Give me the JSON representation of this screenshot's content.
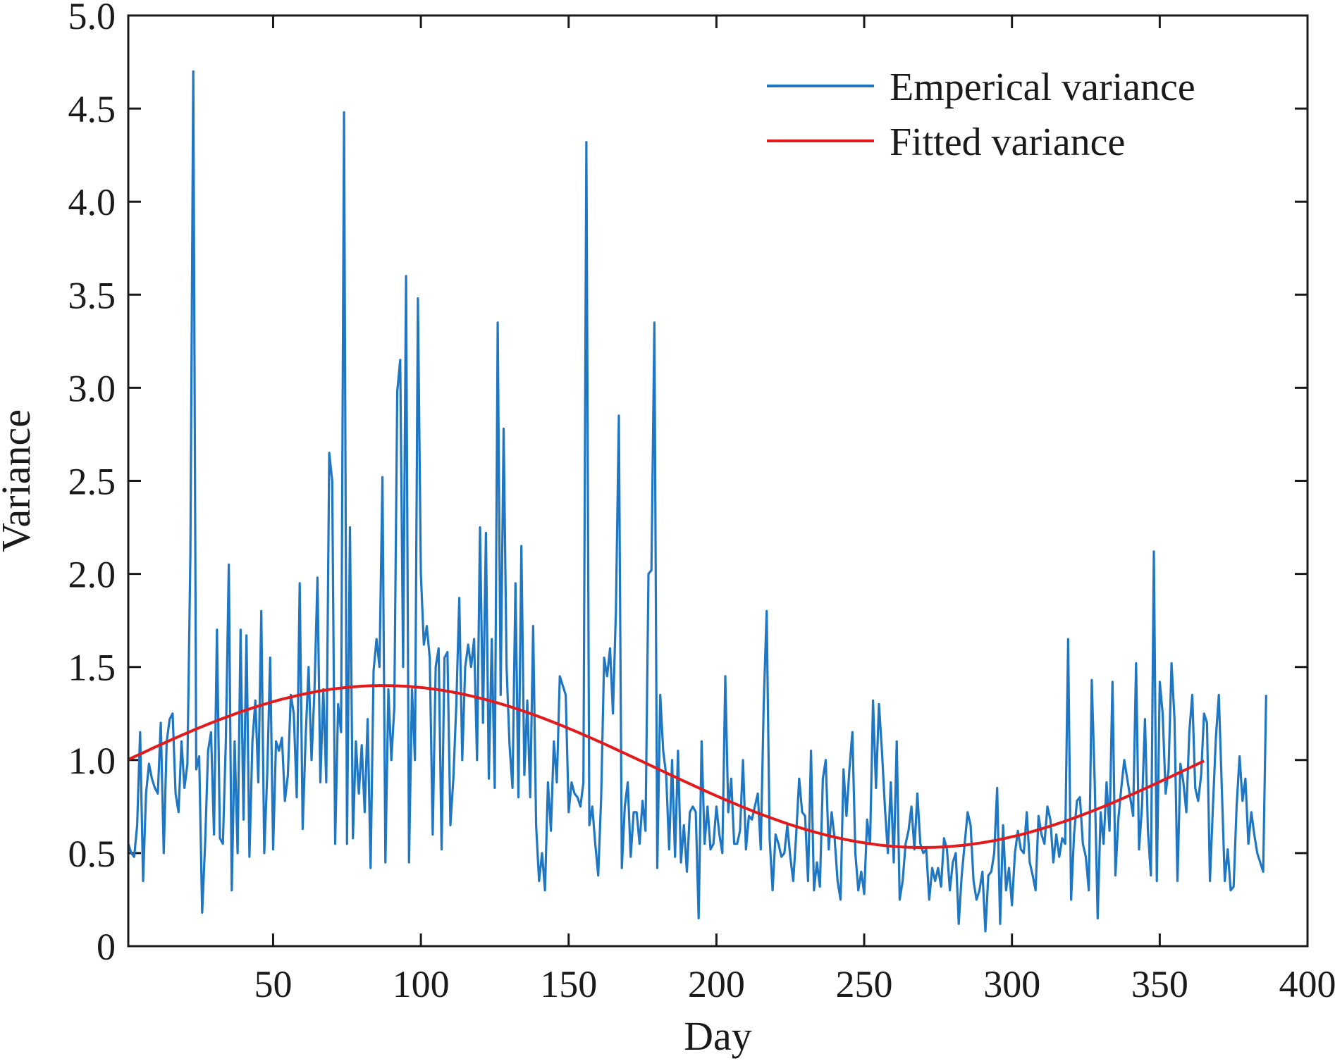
{
  "chart_data": {
    "type": "line",
    "title": "",
    "xlabel": "Day",
    "ylabel": "Variance",
    "xlim": [
      1,
      400
    ],
    "ylim": [
      0,
      5.0
    ],
    "xticks": [
      50,
      100,
      150,
      200,
      250,
      300,
      350,
      400
    ],
    "xtick_labels": [
      "50",
      "100",
      "150",
      "200",
      "250",
      "300",
      "350",
      "400"
    ],
    "yticks": [
      0,
      0.5,
      1.0,
      1.5,
      2.0,
      2.5,
      3.0,
      3.5,
      4.0,
      4.5,
      5.0
    ],
    "ytick_labels": [
      "0",
      "0.5",
      "1.0",
      "1.5",
      "2.0",
      "2.5",
      "3.0",
      "3.5",
      "4.0",
      "4.5",
      "5.0"
    ],
    "grid": false,
    "legend_position": "top-right",
    "series": [
      {
        "name": "Emperical variance",
        "color": "#1f77c4",
        "x_start": 1,
        "x_step": 1,
        "values": [
          0.55,
          0.5,
          0.48,
          0.65,
          1.15,
          0.35,
          0.82,
          0.98,
          0.9,
          0.85,
          0.82,
          1.2,
          0.5,
          1.1,
          1.22,
          1.25,
          0.82,
          0.72,
          1.1,
          0.85,
          0.98,
          2.1,
          4.7,
          0.95,
          1.02,
          0.18,
          0.55,
          1.05,
          1.15,
          0.6,
          1.7,
          0.58,
          0.55,
          1.1,
          2.05,
          0.3,
          1.1,
          0.5,
          1.7,
          0.68,
          1.67,
          0.48,
          1.1,
          1.32,
          0.88,
          1.8,
          0.5,
          0.92,
          1.55,
          0.52,
          1.1,
          1.05,
          1.12,
          0.78,
          0.92,
          1.35,
          1.25,
          0.8,
          1.95,
          0.63,
          1.12,
          1.5,
          1.0,
          1.38,
          1.98,
          0.88,
          1.38,
          0.88,
          2.65,
          2.5,
          0.55,
          1.3,
          1.15,
          4.48,
          0.55,
          2.25,
          0.58,
          1.1,
          0.82,
          1.08,
          0.72,
          1.22,
          0.42,
          1.48,
          1.65,
          1.5,
          2.52,
          0.45,
          1.38,
          1.0,
          1.28,
          2.98,
          3.15,
          1.5,
          3.6,
          0.45,
          1.38,
          1.0,
          3.48,
          2.0,
          1.62,
          1.72,
          1.55,
          0.6,
          1.5,
          1.6,
          0.52,
          1.55,
          1.58,
          0.65,
          0.9,
          1.3,
          1.87,
          1.0,
          1.5,
          1.62,
          1.5,
          1.65,
          1.0,
          2.25,
          1.2,
          2.22,
          0.9,
          1.65,
          0.85,
          3.35,
          1.35,
          2.78,
          1.5,
          1.08,
          0.85,
          1.95,
          0.8,
          2.15,
          0.92,
          1.32,
          0.8,
          1.72,
          0.65,
          0.35,
          0.5,
          0.3,
          0.88,
          0.62,
          1.1,
          0.88,
          1.45,
          1.4,
          1.35,
          0.72,
          0.88,
          0.82,
          0.8,
          0.75,
          0.88,
          4.32,
          0.65,
          0.75,
          0.55,
          0.38,
          0.8,
          1.55,
          1.45,
          1.6,
          1.25,
          1.8,
          2.85,
          0.42,
          0.75,
          0.88,
          0.48,
          0.72,
          0.72,
          0.55,
          0.78,
          0.62,
          2.0,
          2.02,
          3.35,
          0.42,
          1.35,
          1.05,
          0.92,
          0.52,
          1.0,
          0.48,
          1.05,
          0.45,
          0.65,
          0.4,
          0.72,
          0.75,
          0.72,
          0.15,
          1.1,
          0.55,
          0.75,
          0.52,
          0.55,
          0.75,
          0.6,
          0.5,
          1.45,
          0.72,
          0.9,
          0.55,
          0.55,
          0.62,
          1.0,
          0.52,
          0.7,
          0.68,
          0.75,
          0.82,
          0.52,
          1.3,
          1.8,
          0.58,
          0.3,
          0.6,
          0.55,
          0.48,
          0.5,
          0.65,
          0.48,
          0.35,
          0.6,
          0.9,
          0.72,
          0.7,
          0.35,
          1.05,
          0.3,
          0.45,
          0.32,
          0.9,
          1.0,
          0.52,
          0.72,
          0.58,
          0.35,
          0.25,
          0.95,
          0.7,
          0.95,
          1.15,
          0.5,
          0.3,
          0.4,
          0.28,
          0.68,
          0.55,
          1.32,
          0.85,
          1.3,
          1.05,
          0.75,
          0.5,
          0.88,
          0.45,
          1.1,
          0.25,
          0.35,
          0.55,
          0.62,
          0.75,
          0.52,
          0.82,
          0.55,
          0.5,
          0.52,
          0.25,
          0.42,
          0.35,
          0.42,
          0.32,
          0.58,
          0.52,
          0.3,
          0.45,
          0.5,
          0.12,
          0.38,
          0.55,
          0.72,
          0.65,
          0.35,
          0.25,
          0.3,
          0.4,
          0.08,
          0.38,
          0.4,
          0.5,
          0.85,
          0.12,
          0.65,
          0.3,
          0.42,
          0.22,
          0.5,
          0.62,
          0.52,
          0.5,
          0.72,
          0.45,
          0.38,
          0.3,
          0.7,
          0.6,
          0.55,
          0.75,
          0.68,
          0.45,
          0.6,
          0.48,
          0.58,
          0.55,
          1.65,
          0.25,
          0.6,
          0.78,
          0.8,
          0.55,
          0.48,
          0.3,
          1.43,
          0.88,
          0.15,
          0.72,
          0.55,
          0.88,
          0.62,
          1.42,
          0.38,
          0.68,
          0.85,
          1.0,
          0.9,
          0.8,
          0.7,
          1.52,
          0.52,
          0.75,
          1.22,
          0.62,
          0.38,
          2.12,
          0.35,
          1.42,
          1.25,
          0.82,
          0.95,
          1.52,
          1.22,
          0.35,
          0.98,
          0.88,
          0.72,
          1.15,
          1.35,
          0.85,
          0.78,
          0.92,
          1.25,
          1.2,
          0.35,
          0.75,
          1.12,
          1.35,
          0.85,
          0.35,
          0.52,
          0.3,
          0.32,
          0.75,
          1.02,
          0.78,
          0.9,
          0.55,
          0.72,
          0.6,
          0.5,
          0.45,
          0.4,
          1.35
        ]
      },
      {
        "name": "Fitted variance",
        "color": "#e31a1c",
        "model": "mean + amplitude * sin(2*pi*(day - phase)/period)",
        "mean": 0.965,
        "amplitude": 0.435,
        "phase_day": -4,
        "period_days": 365,
        "x_range": [
          1,
          365
        ]
      }
    ]
  }
}
